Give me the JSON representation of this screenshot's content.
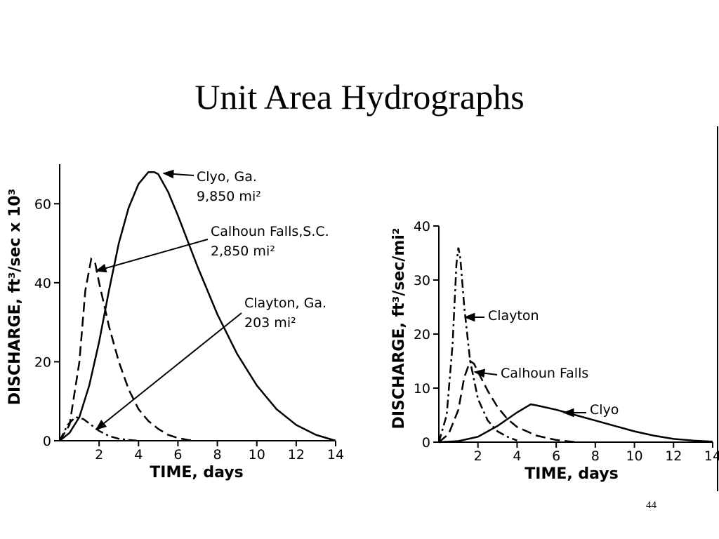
{
  "title": "Unit Area Hydrographs",
  "page_number": 44,
  "chart_data": [
    {
      "type": "line",
      "xlabel": "TIME, days",
      "ylabel": "DISCHARGE, ft³/sec x 10³",
      "xlim": [
        0,
        14
      ],
      "ylim": [
        0,
        70
      ],
      "xticks": [
        2,
        4,
        6,
        8,
        10,
        12,
        14
      ],
      "yticks": [
        0,
        20,
        40,
        60
      ],
      "color": "#000000",
      "series": [
        {
          "name": "Clyo, Ga.",
          "area": "9,850 mi²",
          "dash": "solid",
          "x": [
            0,
            0.5,
            1,
            1.5,
            2,
            2.5,
            3,
            3.5,
            4,
            4.5,
            4.8,
            5,
            5.5,
            6,
            7,
            8,
            9,
            10,
            11,
            12,
            13,
            14
          ],
          "values": [
            0,
            2,
            6,
            14,
            25,
            38,
            50,
            59,
            65,
            68,
            68,
            67.5,
            63,
            57,
            44,
            32,
            22,
            14,
            8,
            4,
            1.5,
            0
          ]
        },
        {
          "name": "Calhoun Falls,S.C.",
          "area": "2,850 mi²",
          "dash": "dashed",
          "x": [
            0,
            0.5,
            1,
            1.3,
            1.6,
            1.8,
            2,
            2.5,
            3,
            3.5,
            4,
            4.5,
            5,
            5.5,
            6,
            6.5,
            6.8
          ],
          "values": [
            0,
            4,
            20,
            38,
            46,
            45,
            40,
            29,
            20,
            13,
            8,
            5,
            3,
            1.5,
            0.7,
            0.2,
            0
          ]
        },
        {
          "name": "Clayton, Ga.",
          "area": "203 mi²",
          "dash": "dashdot",
          "x": [
            0,
            0.4,
            0.8,
            1.2,
            1.6,
            2,
            2.5,
            3,
            3.5,
            4
          ],
          "values": [
            0,
            4,
            6,
            5.5,
            4,
            2.5,
            1.2,
            0.5,
            0.2,
            0
          ]
        }
      ]
    },
    {
      "type": "line",
      "xlabel": "TIME, days",
      "ylabel": "DISCHARGE, ft³/sec/mi²",
      "xlim": [
        0,
        14
      ],
      "ylim": [
        0,
        40
      ],
      "xticks": [
        2,
        4,
        6,
        8,
        10,
        12,
        14
      ],
      "yticks": [
        0,
        10,
        20,
        30,
        40
      ],
      "color": "#000000",
      "series": [
        {
          "name": "Clayton",
          "dash": "dashdot",
          "x": [
            0,
            0.4,
            0.7,
            0.9,
            1.0,
            1.1,
            1.3,
            1.6,
            2,
            2.5,
            3,
            3.5,
            4
          ],
          "values": [
            0,
            5,
            18,
            33,
            36,
            34,
            25,
            15,
            8,
            4,
            2,
            1,
            0.3
          ]
        },
        {
          "name": "Calhoun Falls",
          "dash": "dashed",
          "x": [
            0,
            0.5,
            1,
            1.3,
            1.6,
            1.8,
            2,
            2.5,
            3,
            3.5,
            4,
            5,
            6,
            7
          ],
          "values": [
            0,
            1.5,
            6,
            12,
            15,
            14.5,
            13,
            9.5,
            6.5,
            4.3,
            2.8,
            1.2,
            0.4,
            0
          ]
        },
        {
          "name": "Clyo",
          "dash": "solid",
          "x": [
            0,
            1,
            2,
            3,
            4,
            4.7,
            5,
            6,
            7,
            8,
            9,
            10,
            11,
            12,
            13,
            14
          ],
          "values": [
            0,
            0.2,
            1,
            3,
            5.5,
            7,
            6.8,
            6,
            5,
            4,
            3,
            2,
            1.2,
            0.6,
            0.3,
            0.1
          ]
        }
      ]
    }
  ]
}
